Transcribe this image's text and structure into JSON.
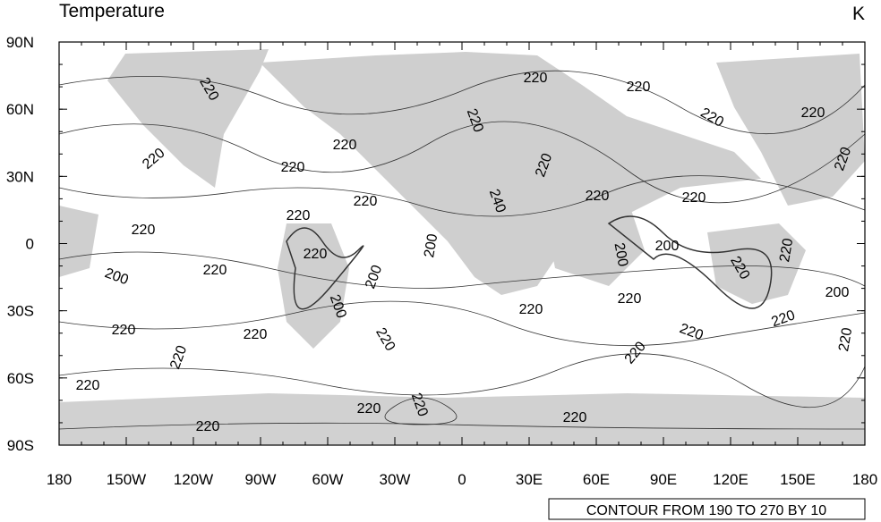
{
  "header": {
    "title": "Temperature",
    "units": "K"
  },
  "axes": {
    "x_labels": [
      "180",
      "150W",
      "120W",
      "90W",
      "60W",
      "30W",
      "0",
      "30E",
      "60E",
      "90E",
      "120E",
      "150E",
      "180"
    ],
    "y_labels": [
      "90N",
      "60N",
      "30N",
      "0",
      "30S",
      "60S",
      "90S"
    ]
  },
  "contour_labels": [
    "220",
    "220",
    "220",
    "220",
    "220",
    "220",
    "220",
    "220",
    "220",
    "220",
    "220",
    "240",
    "220",
    "220",
    "220",
    "220",
    "220",
    "200",
    "200",
    "220",
    "200",
    "220",
    "200",
    "220",
    "200",
    "220",
    "200",
    "220",
    "200",
    "220",
    "220",
    "220",
    "220",
    "220",
    "220",
    "220",
    "220",
    "220",
    "220",
    "220",
    "220",
    "220",
    "220"
  ],
  "info": "CONTOUR FROM 190 TO 270 BY 10"
}
